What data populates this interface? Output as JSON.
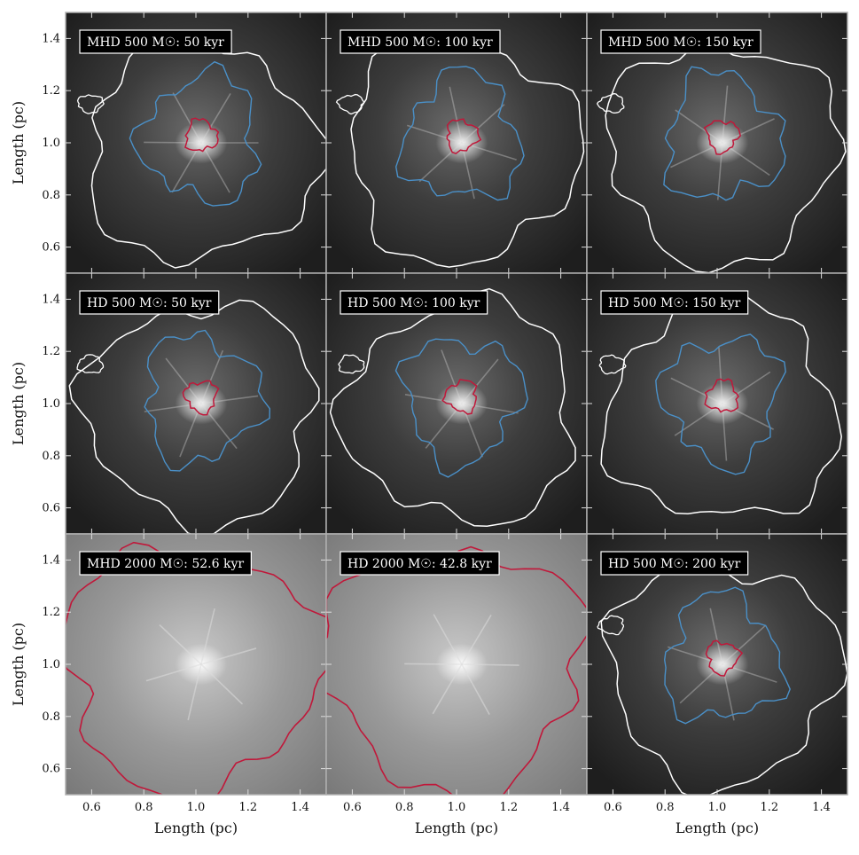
{
  "figure": {
    "panel_titles": [
      "MHD 500 M☉: 50 kyr",
      "MHD 500 M☉: 100 kyr",
      "MHD 500 M☉: 150 kyr",
      "HD 500 M☉: 50 kyr",
      "HD 500 M☉: 100 kyr",
      "HD 500 M☉: 150 kyr",
      "MHD 2000 M☉: 52.6 kyr",
      "HD 2000 M☉: 42.8 kyr",
      "HD 500 M☉: 200 kyr"
    ],
    "xlabel": "Length (pc)",
    "ylabel": "Length (pc)"
  },
  "chart_data": {
    "type": "heatmap",
    "layout": "3x3 grid of column-density maps with contours",
    "xlim": [
      0.5,
      1.5
    ],
    "ylim": [
      0.5,
      1.5
    ],
    "xticks": [
      0.6,
      0.8,
      1.0,
      1.2,
      1.4
    ],
    "yticks": [
      0.6,
      0.8,
      1.0,
      1.2,
      1.4
    ],
    "xtick_labels": [
      "0.6",
      "0.8",
      "1.0",
      "1.2",
      "1.4"
    ],
    "ytick_labels": [
      "0.6",
      "0.8",
      "1.0",
      "1.2",
      "1.4"
    ],
    "xlabel": "Length (pc)",
    "ylabel": "Length (pc)",
    "contour_colors": {
      "white": "#ffffff",
      "blue": "#4a90c8",
      "red": "#c0183a"
    },
    "colormap": "grayscale",
    "panels": [
      {
        "title": "MHD 500 M☉: 50 kyr",
        "background": "dark",
        "contours": [
          "white",
          "blue",
          "red"
        ]
      },
      {
        "title": "MHD 500 M☉: 100 kyr",
        "background": "dark",
        "contours": [
          "white",
          "blue",
          "red"
        ]
      },
      {
        "title": "MHD 500 M☉: 150 kyr",
        "background": "dark",
        "contours": [
          "white",
          "blue",
          "red"
        ]
      },
      {
        "title": "HD 500 M☉: 50 kyr",
        "background": "dark",
        "contours": [
          "white",
          "blue",
          "red"
        ]
      },
      {
        "title": "HD 500 M☉: 100 kyr",
        "background": "dark",
        "contours": [
          "white",
          "blue",
          "red"
        ]
      },
      {
        "title": "HD 500 M☉: 150 kyr",
        "background": "dark",
        "contours": [
          "white",
          "blue",
          "red"
        ]
      },
      {
        "title": "MHD 2000 M☉: 52.6 kyr",
        "background": "light",
        "contours": [
          "red"
        ]
      },
      {
        "title": "HD 2000 M☉: 42.8 kyr",
        "background": "light",
        "contours": [
          "red"
        ]
      },
      {
        "title": "HD 500 M☉: 200 kyr",
        "background": "dark",
        "contours": [
          "white",
          "blue",
          "red"
        ]
      }
    ]
  }
}
